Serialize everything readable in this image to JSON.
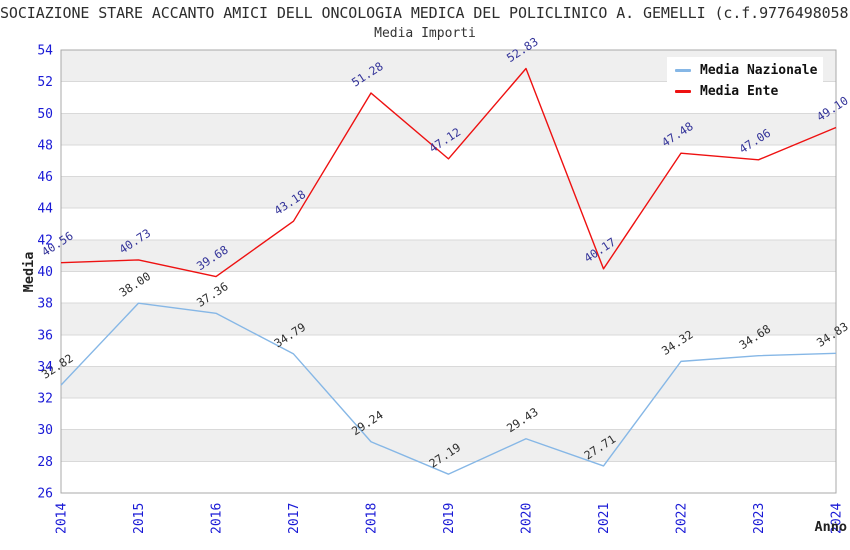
{
  "title": "SOCIAZIONE STARE ACCANTO AMICI DELL ONCOLOGIA MEDICA DEL POLICLINICO A. GEMELLI (c.f.9776498058",
  "subtitle": "Media Importi",
  "axes": {
    "x_label": "Anno",
    "y_label": "Media"
  },
  "colors": {
    "tick_label": "#1a1ad6",
    "axis_label": "#222222",
    "grid_band_gray": "#efefef",
    "grid_band_white": "#ffffff",
    "gridline": "#d9d9d9",
    "plot_border": "#a9a9a9",
    "title_text": "#2d2d2d"
  },
  "legend": {
    "position": "top-right",
    "items": [
      {
        "label": "Media Nazionale"
      },
      {
        "label": "Media Ente"
      }
    ]
  },
  "chart_data": {
    "type": "line",
    "title": "Media Importi",
    "xlabel": "Anno",
    "ylabel": "Media",
    "categories": [
      "2014",
      "2015",
      "2016",
      "2017",
      "2018",
      "2019",
      "2020",
      "2021",
      "2022",
      "2023",
      "2024"
    ],
    "ylim": [
      26,
      54
    ],
    "ytick_step": 2,
    "yticks": [
      26,
      28,
      30,
      32,
      34,
      36,
      38,
      40,
      42,
      44,
      46,
      48,
      50,
      52,
      54
    ],
    "grid": "horizontal-alternating-bands",
    "legend_position": "top-right",
    "series": [
      {
        "name": "Media Nazionale",
        "color": "#86b7e6",
        "label_color": "#2f2f2f",
        "values": [
          32.82,
          38.0,
          37.36,
          34.79,
          29.24,
          27.19,
          29.43,
          27.71,
          34.32,
          34.68,
          34.83
        ]
      },
      {
        "name": "Media Ente",
        "color": "#ee1111",
        "label_color": "#333399",
        "values": [
          40.56,
          40.73,
          39.68,
          43.18,
          51.28,
          47.12,
          52.83,
          40.17,
          47.48,
          47.06,
          49.1
        ]
      }
    ]
  }
}
